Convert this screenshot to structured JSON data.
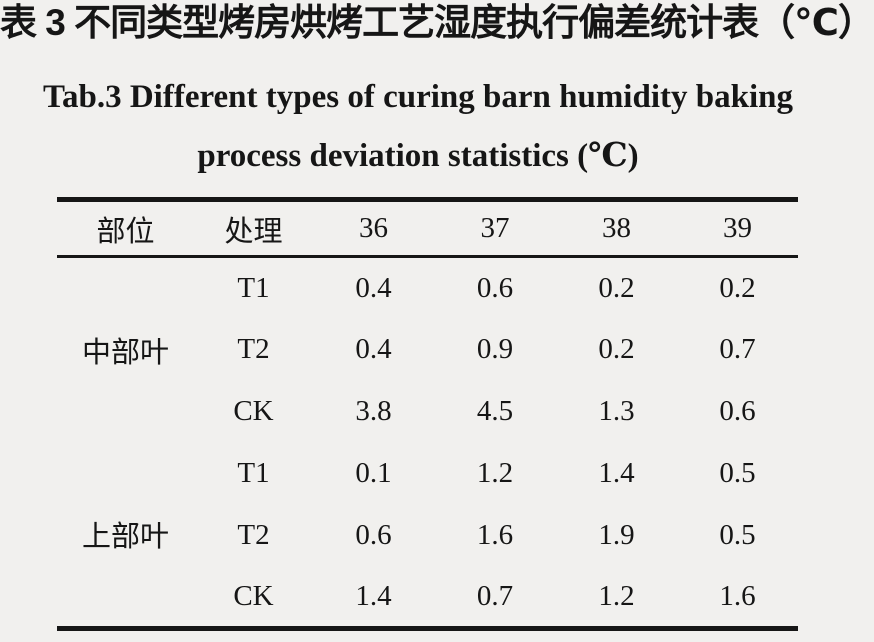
{
  "titles": {
    "zh": "表 3 不同类型烤房烘烤工艺湿度执行偏差统计表（℃）",
    "en_line1": "Tab.3 Different types of curing barn humidity baking",
    "en_line2": "process deviation statistics (℃)"
  },
  "chart_data": {
    "type": "table",
    "title_zh": "表 3 不同类型烤房烘烤工艺湿度执行偏差统计表（℃）",
    "title_en": "Tab.3 Different types of curing barn humidity baking process deviation statistics (℃)",
    "unit": "℃",
    "columns": [
      "部位",
      "处理",
      "36",
      "37",
      "38",
      "39"
    ],
    "groups": [
      {
        "part": "中部叶",
        "rows": [
          {
            "treatment": "T1",
            "values": [
              "0.4",
              "0.6",
              "0.2",
              "0.2"
            ]
          },
          {
            "treatment": "T2",
            "values": [
              "0.4",
              "0.9",
              "0.2",
              "0.7"
            ]
          },
          {
            "treatment": "CK",
            "values": [
              "3.8",
              "4.5",
              "1.3",
              "0.6"
            ]
          }
        ]
      },
      {
        "part": "上部叶",
        "rows": [
          {
            "treatment": "T1",
            "values": [
              "0.1",
              "1.2",
              "1.4",
              "0.5"
            ]
          },
          {
            "treatment": "T2",
            "values": [
              "0.6",
              "1.6",
              "1.9",
              "0.5"
            ]
          },
          {
            "treatment": "CK",
            "values": [
              "1.4",
              "0.7",
              "1.2",
              "1.6"
            ]
          }
        ]
      }
    ]
  }
}
